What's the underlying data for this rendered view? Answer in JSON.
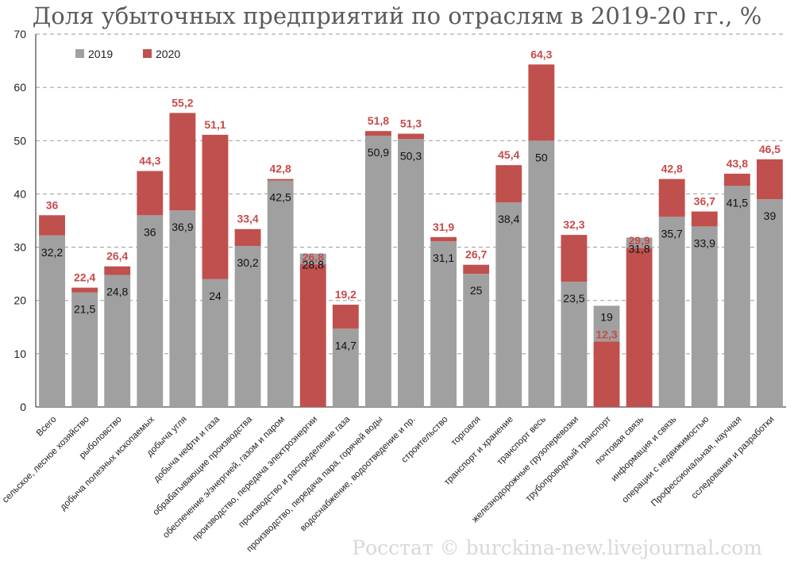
{
  "header": {
    "title": "Доля убыточных предприятий по отраслям в 2019-20 гг., %",
    "watermark": "Росстат © burckina-new.livejournal.com"
  },
  "colors": {
    "series_2019": "#a0a0a0",
    "series_2020": "#c0504d",
    "grid": "#9a9a9a"
  },
  "chart_data": {
    "type": "bar",
    "title": "Доля убыточных предприятий по отраслям в 2019-20 гг., %",
    "xlabel": "",
    "ylabel": "",
    "ylim": [
      0,
      70
    ],
    "yticks": [
      0,
      10,
      20,
      30,
      40,
      50,
      60,
      70
    ],
    "grid": true,
    "legend_position": "top-left",
    "categories": [
      "Всего",
      "сельское, лесное хозяйство",
      "рыболовство",
      "добыча полезных ископаемых",
      "добыча угля",
      "добыча нефти и газа",
      "обрабатывающие производства",
      "обеспечение э/энергией, газом и паром",
      "производство, передача электроэнергии",
      "производство и распределение газа",
      "производство, передача пара, горячей воды",
      "водоснабжение, водоотведение и пр.",
      "строительство",
      "торговля",
      "транспорт и хранение",
      "транспорт весь",
      "железнодорожные грузоперевозки",
      "трубопроводный транспорт",
      "почтовая связь",
      "информация и связь",
      "операции с недвижимостью",
      "Профессиональная, научная",
      "сследования и разработки"
    ],
    "series": [
      {
        "name": "2019",
        "values": [
          32.2,
          21.5,
          24.8,
          36,
          36.9,
          24,
          30.2,
          42.5,
          28.8,
          14.7,
          50.9,
          50.3,
          31.1,
          25,
          38.4,
          50,
          23.5,
          19,
          31.8,
          35.7,
          33.9,
          41.5,
          39
        ],
        "labels": [
          "32,2",
          "21,5",
          "24,8",
          "36",
          "36,9",
          "24",
          "30,2",
          "42,5",
          "28,8",
          "14,7",
          "50,9",
          "50,3",
          "31,1",
          "25",
          "38,4",
          "50",
          "23,5",
          "19",
          "31,8",
          "35,7",
          "33,9",
          "41,5",
          "39"
        ]
      },
      {
        "name": "2020",
        "values": [
          36,
          22.4,
          26.4,
          44.3,
          55.2,
          51.1,
          33.4,
          42.8,
          26.8,
          19.2,
          51.8,
          51.3,
          31.9,
          26.7,
          45.4,
          64.3,
          32.3,
          12.3,
          29.9,
          42.8,
          36.7,
          43.8,
          46.5
        ],
        "labels": [
          "36",
          "22,4",
          "26,4",
          "44,3",
          "55,2",
          "51,1",
          "33,4",
          "42,8",
          "26,8",
          "19,2",
          "51,8",
          "51,3",
          "31,9",
          "26,7",
          "45,4",
          "64,3",
          "32,3",
          "12,3",
          "29,9",
          "42,8",
          "36,7",
          "43,8",
          "46,5"
        ]
      }
    ]
  }
}
